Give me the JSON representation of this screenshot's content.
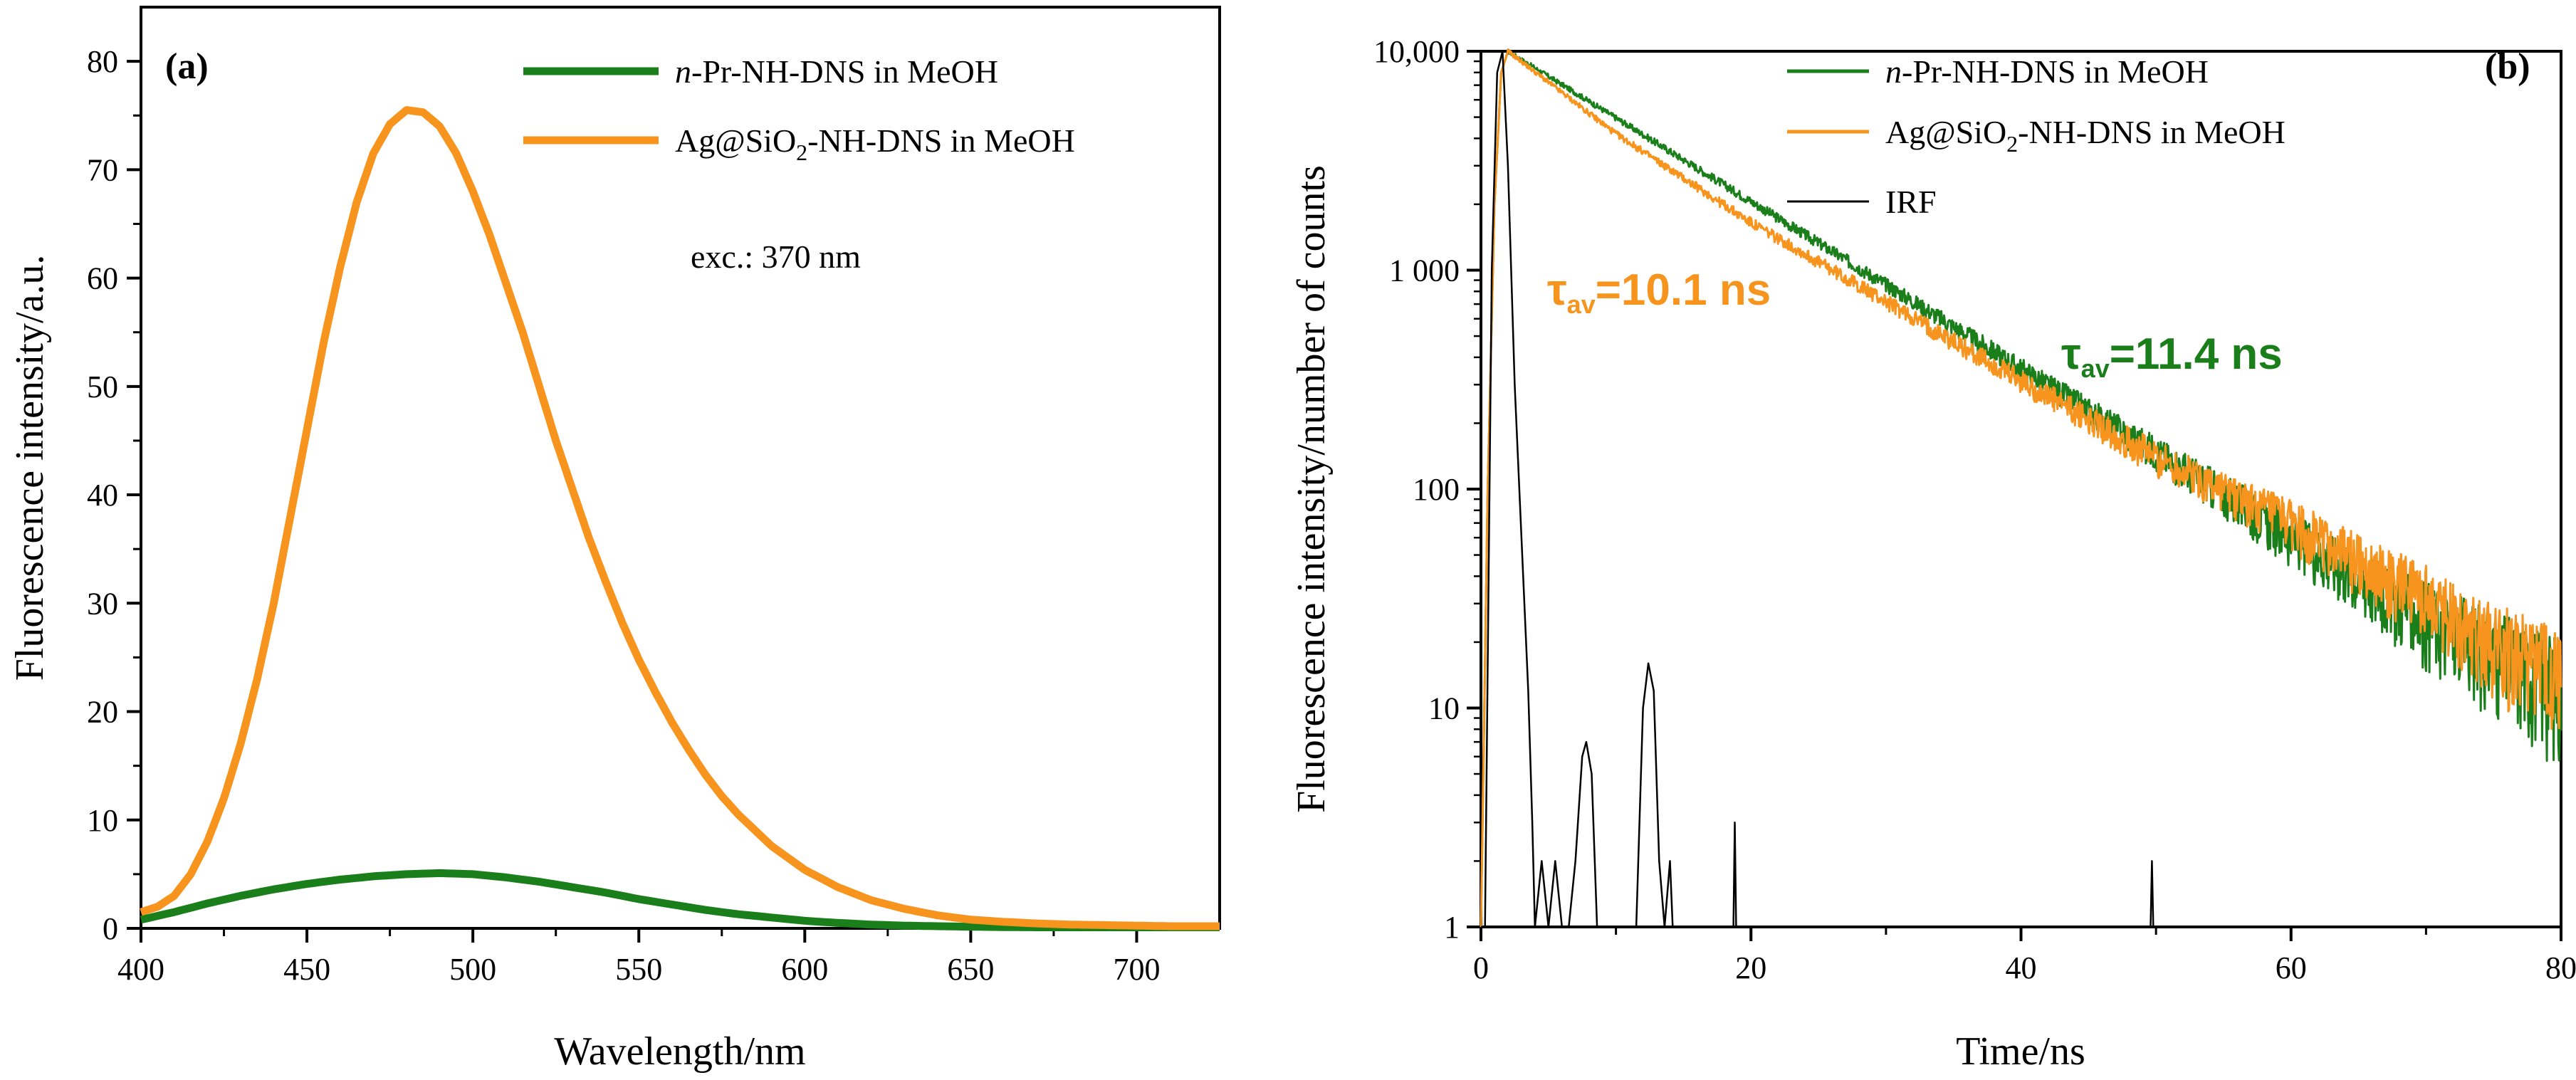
{
  "chart_data": [
    {
      "panel": "(a)",
      "type": "line",
      "xlabel": "Wavelength/nm",
      "ylabel": "Fluorescence intensity/a.u.",
      "xlim": [
        400,
        725
      ],
      "ylim": [
        0,
        85
      ],
      "xticks": [
        400,
        450,
        500,
        550,
        600,
        650,
        700
      ],
      "yticks": [
        0,
        10,
        20,
        30,
        40,
        50,
        60,
        70,
        80
      ],
      "annotation": "exc.: 370 nm",
      "legend": [
        {
          "prefix": "n",
          "rest": "-Pr-NH-DNS in MeOH",
          "color": "#1a7f1a"
        },
        {
          "pre": "Ag@SiO",
          "sub": "2",
          "post": "-NH-DNS in MeOH",
          "color": "#f7941d"
        }
      ],
      "series": [
        {
          "name": "n-Pr-NH-DNS in MeOH",
          "color": "#1a7f1a",
          "x": [
            400,
            410,
            420,
            430,
            440,
            450,
            460,
            470,
            480,
            490,
            500,
            510,
            520,
            530,
            540,
            550,
            560,
            570,
            580,
            590,
            600,
            610,
            620,
            630,
            640,
            650,
            660,
            670,
            680,
            690,
            700,
            710,
            720,
            725
          ],
          "y": [
            0.8,
            1.5,
            2.3,
            3.0,
            3.6,
            4.1,
            4.5,
            4.8,
            5.0,
            5.1,
            5.0,
            4.7,
            4.3,
            3.8,
            3.3,
            2.7,
            2.2,
            1.7,
            1.3,
            1.0,
            0.7,
            0.5,
            0.35,
            0.25,
            0.2,
            0.15,
            0.12,
            0.1,
            0.1,
            0.1,
            0.1,
            0.1,
            0.1,
            0.1
          ]
        },
        {
          "name": "Ag@SiO2-NH-DNS in MeOH",
          "color": "#f7941d",
          "x": [
            400,
            405,
            410,
            415,
            420,
            425,
            430,
            435,
            440,
            445,
            450,
            455,
            460,
            465,
            470,
            475,
            480,
            485,
            490,
            495,
            500,
            505,
            510,
            515,
            520,
            525,
            530,
            535,
            540,
            545,
            550,
            555,
            560,
            565,
            570,
            575,
            580,
            590,
            600,
            610,
            620,
            630,
            640,
            650,
            660,
            670,
            680,
            690,
            700,
            710,
            725
          ],
          "y": [
            1.5,
            2.0,
            3.0,
            5.0,
            8.0,
            12.0,
            17.0,
            23.0,
            30.0,
            38.0,
            46.0,
            54.0,
            61.0,
            67.0,
            71.5,
            74.2,
            75.5,
            75.3,
            74.0,
            71.5,
            68.0,
            64.0,
            59.5,
            55.0,
            50.0,
            45.0,
            40.5,
            36.0,
            32.0,
            28.2,
            24.8,
            21.8,
            19.0,
            16.5,
            14.2,
            12.2,
            10.5,
            7.6,
            5.4,
            3.8,
            2.6,
            1.8,
            1.2,
            0.8,
            0.6,
            0.45,
            0.35,
            0.3,
            0.25,
            0.2,
            0.2
          ]
        }
      ]
    },
    {
      "panel": "(b)",
      "type": "line",
      "yscale": "log",
      "xlabel": "Time/ns",
      "ylabel": "Fluorescence intensity/number of counts",
      "xlim": [
        0,
        80
      ],
      "ylim": [
        1,
        10000
      ],
      "xticks": [
        0,
        20,
        40,
        60,
        80
      ],
      "ytick_values": [
        1,
        10,
        100,
        1000,
        10000
      ],
      "ytick_labels": [
        "1",
        "10",
        "100",
        "1 000",
        "10,000"
      ],
      "legend": [
        {
          "prefix": "n",
          "rest": "-Pr-NH-DNS in MeOH",
          "color": "#1a7f1a"
        },
        {
          "pre": "Ag@SiO",
          "sub": "2",
          "post": "-NH-DNS in MeOH",
          "color": "#f7941d"
        },
        {
          "text": "IRF",
          "color": "#000000"
        }
      ],
      "annotations": [
        {
          "symbol": "τ",
          "sub": "av",
          "text": "=10.1 ns",
          "color": "#f7941d",
          "x": 7.5,
          "y": 1300
        },
        {
          "symbol": "τ",
          "sub": "av",
          "text": "=11.4 ns",
          "color": "#1a7f1a",
          "x": 44,
          "y": 230
        }
      ],
      "series": [
        {
          "name": "n-Pr-NH-DNS in MeOH",
          "color": "#1a7f1a",
          "tau_ns": 11.4,
          "peak_time": 2.0,
          "peak_counts": 10000,
          "x": [
            0,
            0.5,
            1.0,
            1.5,
            2.0,
            10,
            20,
            30,
            40,
            50,
            60,
            70,
            80
          ],
          "y": [
            1,
            100,
            2000,
            8000,
            10000,
            4960,
            2060,
            860,
            355,
            148,
            61,
            26,
            13
          ]
        },
        {
          "name": "Ag@SiO2-NH-DNS in MeOH",
          "color": "#f7941d",
          "tau_ns": 10.1,
          "peak_time": 2.0,
          "peak_counts": 10000,
          "x": [
            0,
            0.5,
            1.0,
            1.5,
            2.0,
            10,
            20,
            30,
            40,
            50,
            60,
            70,
            80
          ],
          "y": [
            1,
            100,
            2000,
            8000,
            10000,
            4200,
            1650,
            720,
            310,
            140,
            70,
            32,
            14
          ]
        },
        {
          "name": "IRF",
          "color": "#000000",
          "x": [
            0,
            0.3,
            0.8,
            1.2,
            1.6,
            2.0,
            2.5,
            3.0,
            3.5,
            3.8,
            4.0,
            4.5,
            5.0,
            5.5,
            6.0,
            6.5,
            7.0,
            7.5,
            7.8,
            8.2,
            8.6,
            9.0,
            11.5,
            12.0,
            12.4,
            12.8,
            13.2,
            13.6,
            14.0,
            14.2,
            18.7,
            18.8,
            18.9,
            49.6,
            49.7,
            49.8,
            80
          ],
          "y": [
            1,
            1,
            1000,
            8000,
            10000,
            3000,
            300,
            60,
            12,
            3,
            1,
            2,
            1,
            2,
            1,
            1,
            2,
            6,
            7,
            5,
            1,
            1,
            1,
            10,
            16,
            12,
            2,
            1,
            2,
            1,
            1,
            3,
            1,
            1,
            2,
            1,
            1
          ]
        }
      ]
    }
  ]
}
